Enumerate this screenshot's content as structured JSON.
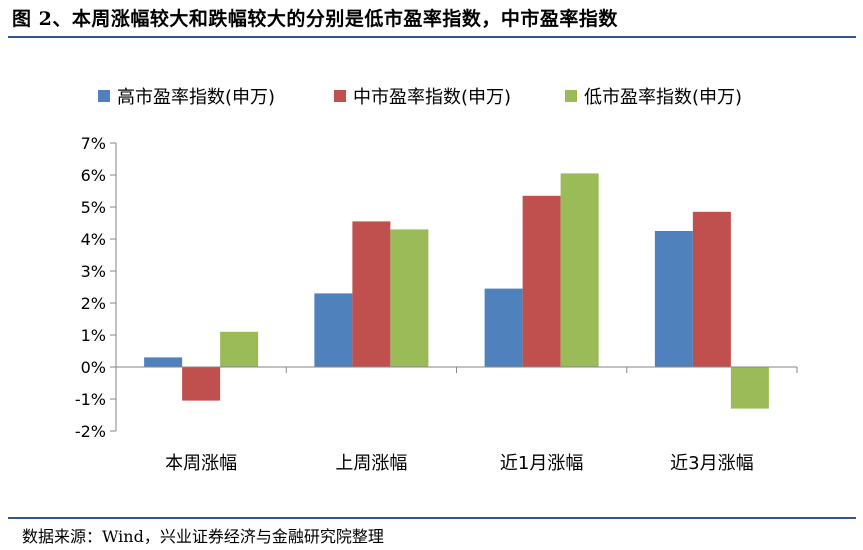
{
  "figure": {
    "title": "图 2、本周涨幅较大和跌幅较大的分别是低市盈率指数，中市盈率指数",
    "source": "数据来源：Wind，兴业证券经济与金融研究院整理"
  },
  "colors": {
    "series": [
      "#4f81bd",
      "#c0504d",
      "#9bbb59"
    ],
    "rule": "#2f5597",
    "axis": "#868686"
  },
  "chart_data": {
    "type": "bar",
    "title": "",
    "xlabel": "",
    "ylabel": "",
    "categories": [
      "本周涨幅",
      "上周涨幅",
      "近1月涨幅",
      "近3月涨幅"
    ],
    "series": [
      {
        "name": "高市盈率指数(申万)",
        "values": [
          0.3,
          2.3,
          2.45,
          4.25
        ]
      },
      {
        "name": "中市盈率指数(申万)",
        "values": [
          -1.05,
          4.55,
          5.35,
          4.85
        ]
      },
      {
        "name": "低市盈率指数(申万)",
        "values": [
          1.1,
          4.3,
          6.05,
          -1.3
        ]
      }
    ],
    "ylim": [
      -2,
      7
    ],
    "yticks": [
      -2,
      -1,
      0,
      1,
      2,
      3,
      4,
      5,
      6,
      7
    ],
    "ytick_labels": [
      "-2%",
      "-1%",
      "0%",
      "1%",
      "2%",
      "3%",
      "4%",
      "5%",
      "6%",
      "7%"
    ],
    "grid": false,
    "legend_position": "top"
  }
}
